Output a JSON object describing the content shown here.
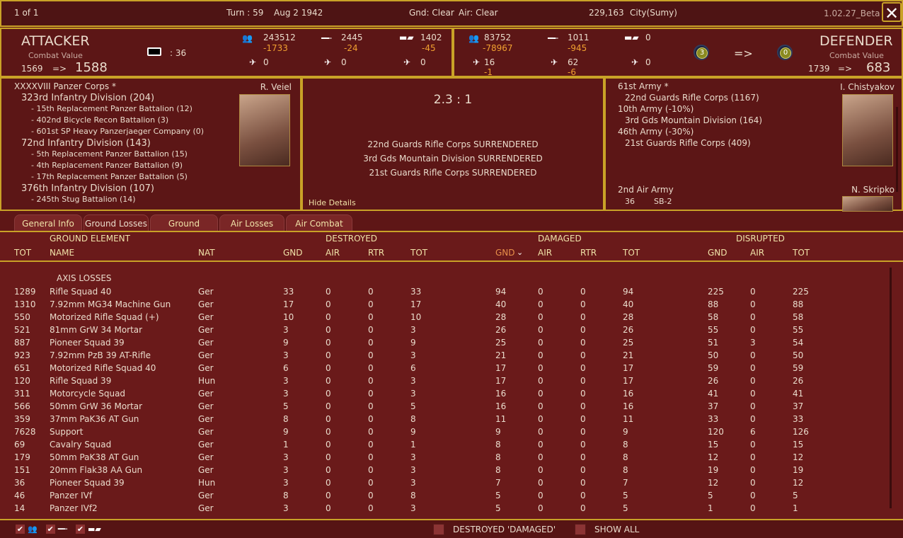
{
  "topbar": {
    "page": "1 of 1",
    "turn": "Turn : 59",
    "date": "Aug 2 1942",
    "ground": "Gnd: Clear",
    "air": "Air: Clear",
    "location_coords": "229,163",
    "location": "City(Sumy)",
    "version": "1.02.27_Beta",
    "close_icon": "close-icon"
  },
  "attacker": {
    "title": "ATTACKER",
    "cv_label": "Combat Value",
    "cv_before": "1569",
    "arrow": "=>",
    "cv_after": "1588",
    "fort_value": ": 36",
    "men": "243512",
    "men_loss": "-1733",
    "guns": "2445",
    "guns_loss": "-24",
    "afv": "1402",
    "afv_loss": "-45",
    "fighters": "0",
    "bombers": "0",
    "other_air": "0"
  },
  "defender": {
    "title": "DEFENDER",
    "cv_label": "Combat Value",
    "cv_before": "1739",
    "arrow": "=>",
    "cv_after": "683",
    "men": "83752",
    "men_loss": "-78967",
    "guns": "1011",
    "guns_loss": "-945",
    "afv": "0",
    "fighters": "16",
    "fighters_loss": "-1",
    "bombers": "62",
    "bombers_loss": "-6",
    "other_air": "0",
    "fort_before": "3",
    "fort_arrow": "=>",
    "fort_after": "0"
  },
  "attacker_units": {
    "leader": "R. Veiel",
    "lines": [
      {
        "text": "XXXXVIII Panzer Corps *",
        "level": 0
      },
      {
        "text": "323rd Infantry Division (204)",
        "level": 1
      },
      {
        "text": "- 15th Replacement Panzer Battalion (12)",
        "level": 2
      },
      {
        "text": "- 402nd Bicycle Recon Battalion (3)",
        "level": 2
      },
      {
        "text": "- 601st SP Heavy Panzerjaeger Company (0)",
        "level": 2
      },
      {
        "text": "72nd Infantry Division (143)",
        "level": 1
      },
      {
        "text": "- 5th Replacement Panzer Battalion (15)",
        "level": 2
      },
      {
        "text": "- 4th Replacement Panzer Battalion (9)",
        "level": 2
      },
      {
        "text": "- 17th Replacement Panzer Battalion (5)",
        "level": 2
      },
      {
        "text": "376th Infantry Division (107)",
        "level": 1
      },
      {
        "text": "- 245th Stug Battalion (14)",
        "level": 2
      }
    ]
  },
  "result": {
    "odds": "2.3 : 1",
    "messages": [
      "22nd Guards Rifle Corps SURRENDERED",
      "3rd Gds Mountain Division SURRENDERED",
      "21st Guards Rifle Corps SURRENDERED"
    ],
    "hide_details": "Hide Details"
  },
  "defender_units": {
    "leader": "I. Chistyakov",
    "lines": [
      {
        "text": "61st Army *",
        "level": 0
      },
      {
        "text": "22nd Guards Rifle Corps (1167)",
        "level": 1
      },
      {
        "text": "10th Army (-10%)",
        "level": 0
      },
      {
        "text": "3rd Gds Mountain Division (164)",
        "level": 1
      },
      {
        "text": "46th Army (-30%)",
        "level": 0
      },
      {
        "text": "21st Guards Rifle Corps (409)",
        "level": 1
      }
    ],
    "air_army": "2nd Air Army",
    "air_leader": "N. Skripko",
    "air_count": "36",
    "air_type": "SB-2"
  },
  "tabs": [
    {
      "label": "General Info"
    },
    {
      "label": "Ground Losses",
      "active": true
    },
    {
      "label": "Ground Combat"
    },
    {
      "label": "Air Losses"
    },
    {
      "label": "Air Combat"
    }
  ],
  "table": {
    "groups": {
      "element": "GROUND ELEMENT",
      "destroyed": "DESTROYED",
      "damaged": "DAMAGED",
      "disrupted": "DISRUPTED"
    },
    "columns": [
      "TOT",
      "NAME",
      "NAT",
      "GND",
      "AIR",
      "RTR",
      "TOT",
      "GND",
      "AIR",
      "RTR",
      "TOT",
      "GND",
      "AIR",
      "TOT"
    ],
    "sorted_column": "Damaged GND (descending)",
    "section": "AXIS LOSSES",
    "rows": [
      [
        "1289",
        "Rifle Squad 40",
        "Ger",
        "33",
        "0",
        "0",
        "33",
        "94",
        "0",
        "0",
        "94",
        "225",
        "0",
        "225"
      ],
      [
        "1310",
        "7.92mm MG34 Machine Gun",
        "Ger",
        "17",
        "0",
        "0",
        "17",
        "40",
        "0",
        "0",
        "40",
        "88",
        "0",
        "88"
      ],
      [
        "550",
        "Motorized Rifle Squad (+)",
        "Ger",
        "10",
        "0",
        "0",
        "10",
        "28",
        "0",
        "0",
        "28",
        "58",
        "0",
        "58"
      ],
      [
        "521",
        "81mm GrW 34 Mortar",
        "Ger",
        "3",
        "0",
        "0",
        "3",
        "26",
        "0",
        "0",
        "26",
        "55",
        "0",
        "55"
      ],
      [
        "887",
        "Pioneer Squad 39",
        "Ger",
        "9",
        "0",
        "0",
        "9",
        "25",
        "0",
        "0",
        "25",
        "51",
        "3",
        "54"
      ],
      [
        "923",
        "7.92mm PzB 39 AT-Rifle",
        "Ger",
        "3",
        "0",
        "0",
        "3",
        "21",
        "0",
        "0",
        "21",
        "50",
        "0",
        "50"
      ],
      [
        "651",
        "Motorized Rifle Squad 40",
        "Ger",
        "6",
        "0",
        "0",
        "6",
        "17",
        "0",
        "0",
        "17",
        "59",
        "0",
        "59"
      ],
      [
        "120",
        "Rifle Squad 39",
        "Hun",
        "3",
        "0",
        "0",
        "3",
        "17",
        "0",
        "0",
        "17",
        "26",
        "0",
        "26"
      ],
      [
        "311",
        "Motorcycle Squad",
        "Ger",
        "3",
        "0",
        "0",
        "3",
        "16",
        "0",
        "0",
        "16",
        "41",
        "0",
        "41"
      ],
      [
        "566",
        "50mm GrW 36 Mortar",
        "Ger",
        "5",
        "0",
        "0",
        "5",
        "16",
        "0",
        "0",
        "16",
        "37",
        "0",
        "37"
      ],
      [
        "359",
        "37mm PaK36 AT Gun",
        "Ger",
        "8",
        "0",
        "0",
        "8",
        "11",
        "0",
        "0",
        "11",
        "33",
        "0",
        "33"
      ],
      [
        "7628",
        "Support",
        "Ger",
        "9",
        "0",
        "0",
        "9",
        "9",
        "0",
        "0",
        "9",
        "120",
        "6",
        "126"
      ],
      [
        "69",
        "Cavalry Squad",
        "Ger",
        "1",
        "0",
        "0",
        "1",
        "8",
        "0",
        "0",
        "8",
        "15",
        "0",
        "15"
      ],
      [
        "179",
        "50mm PaK38 AT Gun",
        "Ger",
        "3",
        "0",
        "0",
        "3",
        "8",
        "0",
        "0",
        "8",
        "12",
        "0",
        "12"
      ],
      [
        "151",
        "20mm Flak38 AA Gun",
        "Ger",
        "3",
        "0",
        "0",
        "3",
        "8",
        "0",
        "0",
        "8",
        "19",
        "0",
        "19"
      ],
      [
        "36",
        "Pioneer Squad 39",
        "Hun",
        "3",
        "0",
        "0",
        "3",
        "7",
        "0",
        "0",
        "7",
        "12",
        "0",
        "12"
      ],
      [
        "46",
        "Panzer IVf",
        "Ger",
        "8",
        "0",
        "0",
        "8",
        "5",
        "0",
        "0",
        "5",
        "5",
        "0",
        "5"
      ],
      [
        "14",
        "Panzer IVf2",
        "Ger",
        "3",
        "0",
        "0",
        "3",
        "5",
        "0",
        "0",
        "5",
        "1",
        "0",
        "1"
      ]
    ]
  },
  "footer": {
    "filters": [
      {
        "icon": "infantry-icon",
        "checked": true
      },
      {
        "icon": "gun-icon",
        "checked": true
      },
      {
        "icon": "tank-icon",
        "checked": true
      }
    ],
    "destroyed_damaged": "DESTROYED 'DAMAGED'",
    "show_all": "SHOW ALL",
    "destroyed_damaged_checked": false,
    "show_all_checked": false
  },
  "colors": {
    "background": "#5e1616",
    "border": "#c9a227",
    "header_text": "#f0e2a8",
    "loss_text": "#f0a030",
    "sorted_header": "#e8904a"
  }
}
